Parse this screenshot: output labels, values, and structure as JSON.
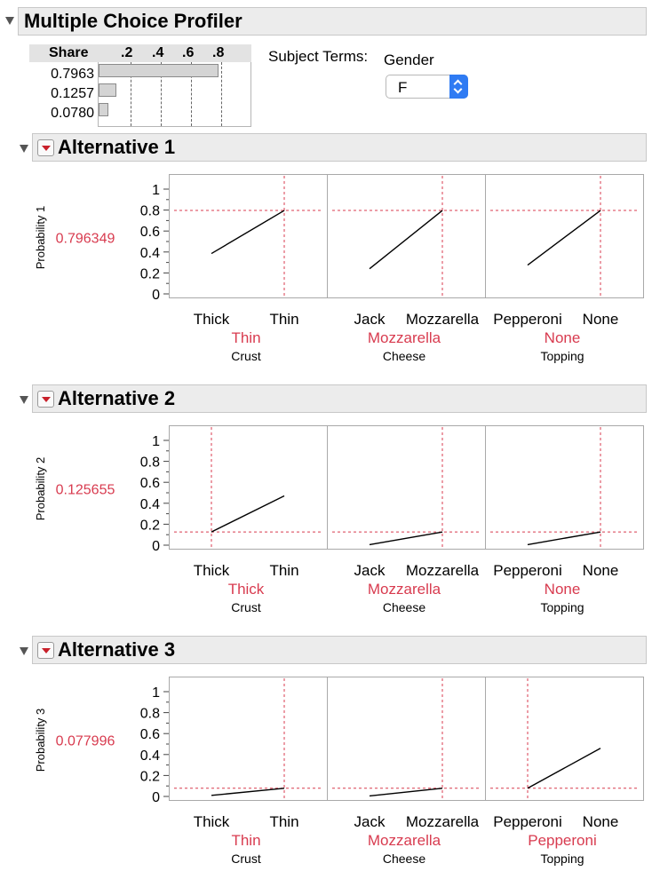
{
  "title": "Multiple Choice Profiler",
  "share": {
    "header": "Share",
    "ticks": [
      ".2",
      ".4",
      ".6",
      ".8"
    ],
    "tick_values": [
      0.2,
      0.4,
      0.6,
      0.8
    ],
    "values": [
      0.7963,
      0.1257,
      0.078
    ],
    "labels": [
      "0.7963",
      "0.1257",
      "0.0780"
    ]
  },
  "subject_terms": {
    "label": "Subject Terms:",
    "gender_label": "Gender",
    "gender_value": "F"
  },
  "colors": {
    "accent_red": "#d83b4f",
    "select_blue": "#2f7bf3"
  },
  "chart_data": [
    {
      "type": "line",
      "title": "Alternative 1",
      "ylabel": "Probability 1",
      "current_value": "0.796349",
      "ylim": [
        0,
        1
      ],
      "yticks": [
        "0",
        "0.2",
        "0.4",
        "0.6",
        "0.8",
        "1"
      ],
      "factors": [
        {
          "name": "Crust",
          "levels": [
            "Thick",
            "Thin"
          ],
          "values": [
            0.385,
            0.796
          ],
          "current": "Thin",
          "current_index": 1
        },
        {
          "name": "Cheese",
          "levels": [
            "Jack",
            "Mozzarella"
          ],
          "values": [
            0.24,
            0.796
          ],
          "current": "Mozzarella",
          "current_index": 1
        },
        {
          "name": "Topping",
          "levels": [
            "Pepperoni",
            "None"
          ],
          "values": [
            0.275,
            0.796
          ],
          "current": "None",
          "current_index": 1
        }
      ]
    },
    {
      "type": "line",
      "title": "Alternative 2",
      "ylabel": "Probability 2",
      "current_value": "0.125655",
      "ylim": [
        0,
        1
      ],
      "yticks": [
        "0",
        "0.2",
        "0.4",
        "0.6",
        "0.8",
        "1"
      ],
      "factors": [
        {
          "name": "Crust",
          "levels": [
            "Thick",
            "Thin"
          ],
          "values": [
            0.126,
            0.47
          ],
          "current": "Thick",
          "current_index": 0
        },
        {
          "name": "Cheese",
          "levels": [
            "Jack",
            "Mozzarella"
          ],
          "values": [
            0.005,
            0.126
          ],
          "current": "Mozzarella",
          "current_index": 1
        },
        {
          "name": "Topping",
          "levels": [
            "Pepperoni",
            "None"
          ],
          "values": [
            0.005,
            0.126
          ],
          "current": "None",
          "current_index": 1
        }
      ]
    },
    {
      "type": "line",
      "title": "Alternative 3",
      "ylabel": "Probability 3",
      "current_value": "0.077996",
      "ylim": [
        0,
        1
      ],
      "yticks": [
        "0",
        "0.2",
        "0.4",
        "0.6",
        "0.8",
        "1"
      ],
      "factors": [
        {
          "name": "Crust",
          "levels": [
            "Thick",
            "Thin"
          ],
          "values": [
            0.01,
            0.078
          ],
          "current": "Thin",
          "current_index": 1
        },
        {
          "name": "Cheese",
          "levels": [
            "Jack",
            "Mozzarella"
          ],
          "values": [
            0.005,
            0.078
          ],
          "current": "Mozzarella",
          "current_index": 1
        },
        {
          "name": "Topping",
          "levels": [
            "Pepperoni",
            "None"
          ],
          "values": [
            0.078,
            0.46
          ],
          "current": "Pepperoni",
          "current_index": 0
        }
      ]
    }
  ]
}
